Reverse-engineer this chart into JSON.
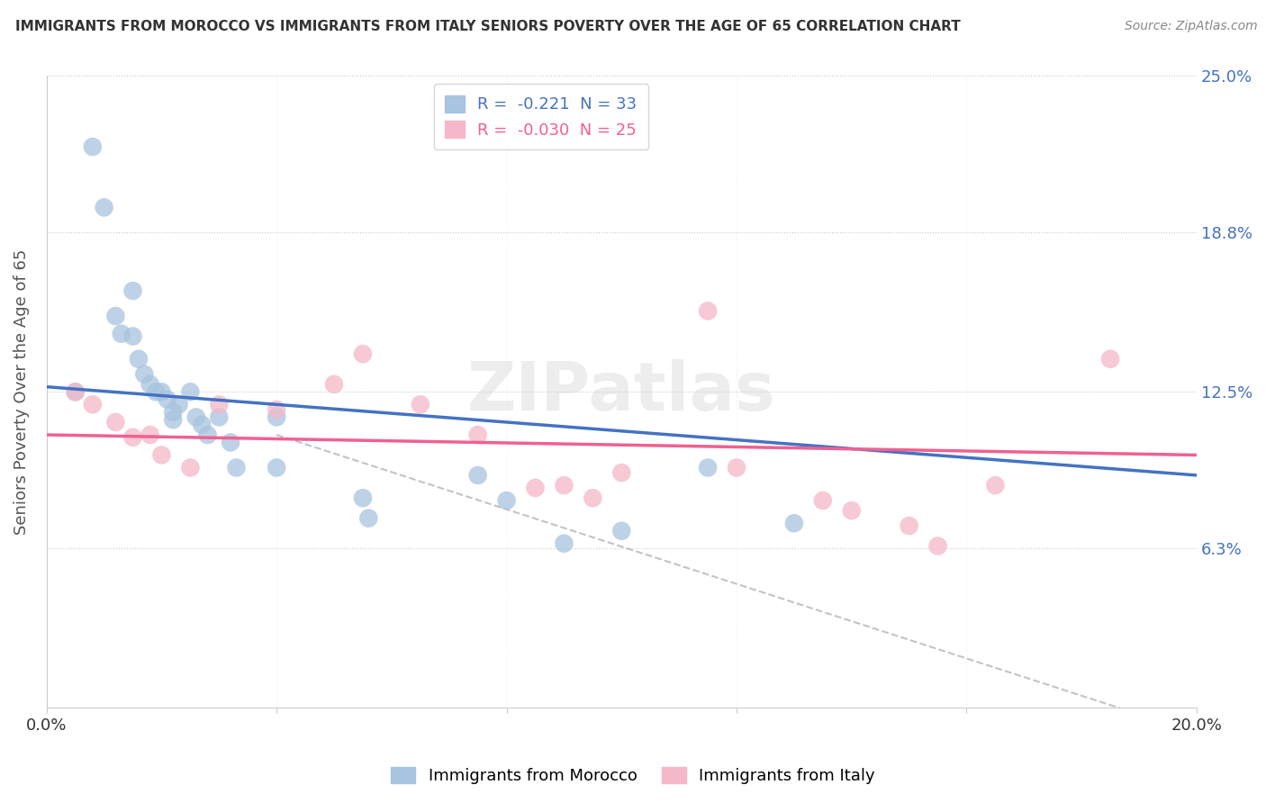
{
  "title": "IMMIGRANTS FROM MOROCCO VS IMMIGRANTS FROM ITALY SENIORS POVERTY OVER THE AGE OF 65 CORRELATION CHART",
  "source": "Source: ZipAtlas.com",
  "ylabel": "Seniors Poverty Over the Age of 65",
  "xlim": [
    0.0,
    0.2
  ],
  "ylim": [
    0.0,
    0.25
  ],
  "ytick_labels": [
    "",
    "6.3%",
    "12.5%",
    "18.8%",
    "25.0%"
  ],
  "ytick_values": [
    0.0,
    0.063,
    0.125,
    0.188,
    0.25
  ],
  "morocco_r": -0.221,
  "morocco_n": 33,
  "italy_r": -0.03,
  "italy_n": 25,
  "morocco_color": "#a8c4e0",
  "italy_color": "#f4b8c8",
  "morocco_line_color": "#4472c4",
  "italy_line_color": "#f06090",
  "morocco_label_color": "#4472c4",
  "italy_label_color": "#f06090",
  "blue_line_x": [
    0.0,
    0.2
  ],
  "blue_line_y": [
    0.127,
    0.092
  ],
  "pink_line_x": [
    0.0,
    0.2
  ],
  "pink_line_y": [
    0.108,
    0.1
  ],
  "dashed_line_x": [
    0.04,
    0.2
  ],
  "dashed_line_y": [
    0.108,
    -0.01
  ],
  "morocco_x": [
    0.005,
    0.008,
    0.01,
    0.012,
    0.013,
    0.015,
    0.015,
    0.016,
    0.017,
    0.018,
    0.019,
    0.02,
    0.021,
    0.022,
    0.022,
    0.023,
    0.025,
    0.026,
    0.027,
    0.028,
    0.03,
    0.032,
    0.033,
    0.04,
    0.04,
    0.055,
    0.056,
    0.075,
    0.08,
    0.09,
    0.1,
    0.115,
    0.13
  ],
  "morocco_y": [
    0.125,
    0.222,
    0.198,
    0.155,
    0.148,
    0.165,
    0.147,
    0.138,
    0.132,
    0.128,
    0.125,
    0.125,
    0.122,
    0.117,
    0.114,
    0.12,
    0.125,
    0.115,
    0.112,
    0.108,
    0.115,
    0.105,
    0.095,
    0.095,
    0.115,
    0.083,
    0.075,
    0.092,
    0.082,
    0.065,
    0.07,
    0.095,
    0.073
  ],
  "italy_x": [
    0.005,
    0.008,
    0.012,
    0.015,
    0.018,
    0.02,
    0.025,
    0.03,
    0.04,
    0.05,
    0.055,
    0.065,
    0.075,
    0.085,
    0.09,
    0.095,
    0.1,
    0.115,
    0.12,
    0.135,
    0.14,
    0.15,
    0.155,
    0.165,
    0.185
  ],
  "italy_y": [
    0.125,
    0.12,
    0.113,
    0.107,
    0.108,
    0.1,
    0.095,
    0.12,
    0.118,
    0.128,
    0.14,
    0.12,
    0.108,
    0.087,
    0.088,
    0.083,
    0.093,
    0.157,
    0.095,
    0.082,
    0.078,
    0.072,
    0.064,
    0.088,
    0.138
  ]
}
